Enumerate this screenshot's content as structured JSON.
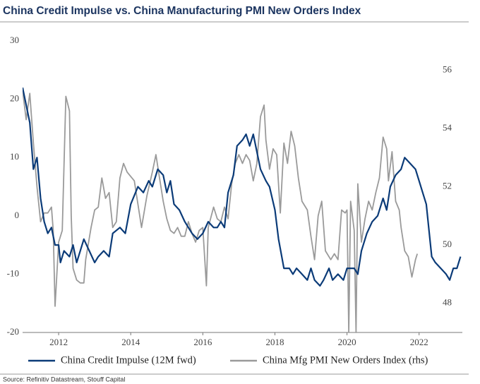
{
  "chart_data": {
    "type": "line",
    "title": "China Credit Impulse vs. China Manufacturing PMI New Orders Index",
    "source": "Source: Refinitiv Datastream, Stouff Capital",
    "xlim": [
      2011,
      2023.2
    ],
    "xticks": [
      2012,
      2014,
      2016,
      2018,
      2020,
      2022
    ],
    "ylim": [
      -20,
      30
    ],
    "yticks": [
      -20,
      -10,
      0,
      10,
      20,
      30
    ],
    "y2lim": [
      47,
      57
    ],
    "y2ticks": [
      48,
      50,
      52,
      54,
      56
    ],
    "grid": false,
    "legend": "bottom",
    "series": [
      {
        "name": "China Credit Impulse (12M fwd)",
        "color": "#0b3b78",
        "axis": "y",
        "x": [
          2011.0,
          2011.1,
          2011.2,
          2011.3,
          2011.4,
          2011.5,
          2011.6,
          2011.7,
          2011.8,
          2011.9,
          2012.0,
          2012.05,
          2012.15,
          2012.3,
          2012.4,
          2012.5,
          2012.6,
          2012.7,
          2012.85,
          2013.0,
          2013.1,
          2013.25,
          2013.4,
          2013.5,
          2013.7,
          2013.85,
          2014.0,
          2014.2,
          2014.35,
          2014.5,
          2014.6,
          2014.75,
          2014.9,
          2015.0,
          2015.1,
          2015.2,
          2015.35,
          2015.5,
          2015.7,
          2015.85,
          2016.0,
          2016.15,
          2016.3,
          2016.4,
          2016.5,
          2016.6,
          2016.7,
          2016.85,
          2016.95,
          2017.1,
          2017.2,
          2017.3,
          2017.4,
          2017.5,
          2017.6,
          2017.75,
          2017.85,
          2018.0,
          2018.1,
          2018.25,
          2018.4,
          2018.5,
          2018.6,
          2018.75,
          2018.9,
          2019.0,
          2019.1,
          2019.25,
          2019.35,
          2019.5,
          2019.6,
          2019.75,
          2019.9,
          2020.0,
          2020.2,
          2020.3,
          2020.4,
          2020.55,
          2020.7,
          2020.85,
          2021.0,
          2021.1,
          2021.2,
          2021.35,
          2021.5,
          2021.6,
          2021.75,
          2021.9,
          2022.0,
          2022.1,
          2022.2,
          2022.35,
          2022.45,
          2022.6,
          2022.75,
          2022.85,
          2022.95,
          2023.05,
          2023.15
        ],
        "values": [
          22,
          19,
          16,
          8,
          10,
          3,
          -1,
          -3,
          -2,
          -5,
          -5,
          -8,
          -6,
          -7,
          -5,
          -8,
          -6,
          -4,
          -6,
          -8,
          -7,
          -6,
          -7,
          -3,
          -2,
          -3,
          2,
          5,
          4,
          6,
          5,
          8,
          7,
          4,
          6,
          2,
          1,
          -1,
          -3,
          -4,
          -3,
          -1,
          -2,
          -2,
          -1,
          -2,
          4,
          7,
          12,
          13,
          14,
          12,
          14,
          11,
          8,
          6,
          5,
          1,
          -4,
          -9,
          -9,
          -10,
          -9,
          -10,
          -11,
          -9,
          -11,
          -12,
          -11,
          -9,
          -11,
          -10,
          -11,
          -9,
          -9,
          -10,
          -6,
          -3,
          -1,
          0,
          3,
          1,
          5,
          7,
          8,
          10,
          9,
          8,
          6,
          4,
          2,
          -7,
          -8,
          -9,
          -10,
          -11,
          -9,
          -9,
          -7
        ]
      },
      {
        "name": "China Mfg PMI New Orders Index (rhs)",
        "color": "#9a9a9a",
        "axis": "y2",
        "x": [
          2011.0,
          2011.1,
          2011.2,
          2011.3,
          2011.4,
          2011.5,
          2011.6,
          2011.7,
          2011.8,
          2011.85,
          2011.9,
          2012.0,
          2012.1,
          2012.2,
          2012.3,
          2012.35,
          2012.4,
          2012.5,
          2012.6,
          2012.7,
          2012.75,
          2012.9,
          2013.0,
          2013.1,
          2013.2,
          2013.3,
          2013.4,
          2013.5,
          2013.6,
          2013.7,
          2013.8,
          2013.9,
          2014.1,
          2014.2,
          2014.3,
          2014.45,
          2014.6,
          2014.7,
          2014.8,
          2014.9,
          2015.0,
          2015.1,
          2015.2,
          2015.3,
          2015.4,
          2015.5,
          2015.6,
          2015.7,
          2015.8,
          2015.9,
          2016.0,
          2016.1,
          2016.15,
          2016.3,
          2016.4,
          2016.5,
          2016.6,
          2016.7,
          2016.8,
          2016.9,
          2017.0,
          2017.1,
          2017.2,
          2017.3,
          2017.4,
          2017.5,
          2017.6,
          2017.7,
          2017.75,
          2017.85,
          2017.95,
          2018.05,
          2018.15,
          2018.25,
          2018.35,
          2018.45,
          2018.55,
          2018.65,
          2018.75,
          2018.9,
          2019.0,
          2019.1,
          2019.2,
          2019.3,
          2019.4,
          2019.55,
          2019.65,
          2019.75,
          2019.85,
          2019.95,
          2020.0,
          2020.05,
          2020.1,
          2020.2,
          2020.25,
          2020.3,
          2020.4,
          2020.5,
          2020.6,
          2020.7,
          2020.8,
          2020.9,
          2021.0,
          2021.1,
          2021.15,
          2021.25,
          2021.35,
          2021.45,
          2021.5,
          2021.6,
          2021.7,
          2021.8,
          2021.9,
          2021.95
        ],
        "values": [
          55.3,
          54.3,
          55.2,
          53.5,
          52,
          50.8,
          51.1,
          51.1,
          51.3,
          50.5,
          47.9,
          50.1,
          50.5,
          55.1,
          54.6,
          51,
          49.2,
          48.8,
          48.7,
          48.7,
          49.5,
          50.6,
          51.2,
          51.3,
          52.3,
          51.6,
          51.8,
          50.6,
          50.8,
          52.3,
          52.8,
          52.5,
          52.2,
          51.4,
          50.6,
          51.7,
          52.5,
          53.1,
          52.3,
          51.5,
          50.9,
          50.5,
          50.4,
          50.6,
          50.3,
          50.3,
          50.8,
          50.4,
          50.1,
          50.5,
          50.6,
          48.6,
          50.6,
          51.3,
          50.9,
          50.8,
          51.3,
          50.9,
          52.1,
          52.8,
          53.1,
          52.8,
          53.1,
          52.9,
          52.2,
          52.8,
          54.4,
          54.8,
          53.6,
          52.6,
          53.3,
          53.1,
          51.1,
          53.5,
          52.8,
          53.9,
          53.4,
          52.3,
          51.5,
          51.2,
          50.3,
          49.5,
          51,
          51.5,
          49.8,
          49.5,
          49.7,
          49.5,
          51.2,
          51.1,
          51.2,
          47.0,
          51.5,
          50.5,
          47.0,
          52.1,
          50.1,
          50.9,
          51.5,
          51.2,
          51.8,
          52.3,
          53.7,
          53.3,
          52.2,
          53.2,
          51.5,
          51.2,
          50.6,
          49.8,
          49.6,
          48.9,
          49.5,
          49.7
        ]
      }
    ]
  }
}
